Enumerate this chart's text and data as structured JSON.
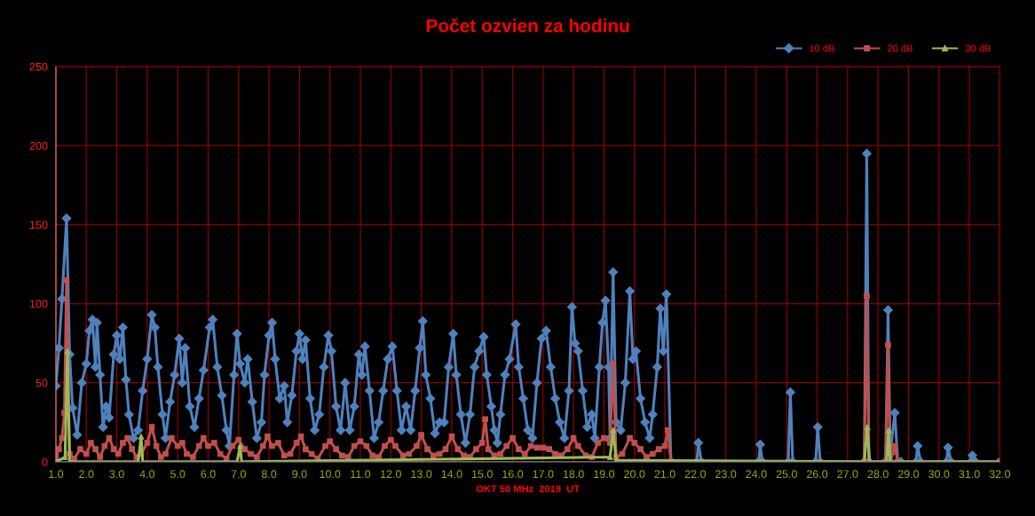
{
  "chart_data": {
    "type": "line",
    "title": "Počet ozvien za hodinu",
    "xlabel": "OKT 50 MHz  2019  UT",
    "xlim": [
      1,
      32
    ],
    "xticks": [
      {
        "value": 1,
        "label": "1.0"
      },
      {
        "value": 2,
        "label": "2.0"
      },
      {
        "value": 3,
        "label": "3.0"
      },
      {
        "value": 4,
        "label": "4.0"
      },
      {
        "value": 5,
        "label": "5.0"
      },
      {
        "value": 6,
        "label": "6.0"
      },
      {
        "value": 7,
        "label": "7.0"
      },
      {
        "value": 8,
        "label": "8.0"
      },
      {
        "value": 9,
        "label": "9.0"
      },
      {
        "value": 10,
        "label": "10.0"
      },
      {
        "value": 11,
        "label": "11.0"
      },
      {
        "value": 12,
        "label": "12.0"
      },
      {
        "value": 13,
        "label": "13.0"
      },
      {
        "value": 14,
        "label": "14.0"
      },
      {
        "value": 15,
        "label": "15.0"
      },
      {
        "value": 16,
        "label": "16.0"
      },
      {
        "value": 17,
        "label": "17.0"
      },
      {
        "value": 18,
        "label": "18.0"
      },
      {
        "value": 19,
        "label": "19.0"
      },
      {
        "value": 20,
        "label": "20.0"
      },
      {
        "value": 21,
        "label": "21.0"
      },
      {
        "value": 22,
        "label": "22.0"
      },
      {
        "value": 23,
        "label": "23.0"
      },
      {
        "value": 24,
        "label": "24.0"
      },
      {
        "value": 25,
        "label": "25.0"
      },
      {
        "value": 26,
        "label": "26.0"
      },
      {
        "value": 27,
        "label": "27.0"
      },
      {
        "value": 28,
        "label": "28.0"
      },
      {
        "value": 29,
        "label": "29.0"
      },
      {
        "value": 30,
        "label": "30.0"
      },
      {
        "value": 31,
        "label": "31.0"
      },
      {
        "value": 32,
        "label": "32.0"
      }
    ],
    "ylim": [
      0,
      250
    ],
    "yticks": [
      0,
      50,
      100,
      150,
      200,
      250
    ],
    "grid": true,
    "legend": "top right",
    "series": [
      {
        "name": "10 dB",
        "color": "#4f81bd",
        "marker": "diamond",
        "x": [
          1.0,
          1.1,
          1.2,
          1.35,
          1.45,
          1.55,
          1.7,
          1.85,
          2.0,
          2.1,
          2.2,
          2.3,
          2.35,
          2.45,
          2.55,
          2.65,
          2.75,
          2.9,
          3.0,
          3.1,
          3.2,
          3.3,
          3.4,
          3.55,
          3.7,
          3.85,
          4.0,
          4.15,
          4.25,
          4.35,
          4.5,
          4.6,
          4.75,
          4.9,
          5.05,
          5.15,
          5.25,
          5.4,
          5.55,
          5.7,
          5.85,
          6.05,
          6.15,
          6.3,
          6.45,
          6.6,
          6.7,
          6.85,
          6.95,
          7.05,
          7.2,
          7.3,
          7.45,
          7.6,
          7.75,
          7.85,
          8.0,
          8.1,
          8.2,
          8.35,
          8.5,
          8.6,
          8.75,
          8.9,
          9.0,
          9.1,
          9.2,
          9.35,
          9.5,
          9.65,
          9.8,
          9.95,
          10.05,
          10.2,
          10.35,
          10.5,
          10.65,
          10.8,
          10.95,
          11.05,
          11.15,
          11.3,
          11.45,
          11.6,
          11.75,
          11.9,
          12.05,
          12.2,
          12.35,
          12.5,
          12.65,
          12.8,
          12.95,
          13.05,
          13.15,
          13.3,
          13.45,
          13.6,
          13.75,
          13.9,
          14.05,
          14.15,
          14.3,
          14.45,
          14.6,
          14.75,
          14.9,
          15.05,
          15.15,
          15.3,
          15.4,
          15.5,
          15.6,
          15.75,
          15.9,
          16.1,
          16.2,
          16.35,
          16.5,
          16.65,
          16.8,
          16.95,
          17.1,
          17.25,
          17.4,
          17.55,
          17.7,
          17.85,
          17.95,
          18.05,
          18.15,
          18.3,
          18.45,
          18.6,
          18.7,
          18.85,
          18.95,
          19.05,
          19.15,
          19.2,
          19.3,
          19.4,
          19.55,
          19.7,
          19.85,
          19.95,
          20.05,
          20.2,
          20.35,
          20.5,
          20.6,
          20.75,
          20.85,
          20.95,
          21.05,
          21.2,
          22.05,
          22.1,
          22.2,
          24.08,
          24.13,
          24.2,
          25.05,
          25.12,
          25.2,
          25.95,
          26.02,
          26.1,
          27.55,
          27.63,
          27.7,
          28.25,
          28.33,
          28.4,
          28.55,
          28.65,
          28.75,
          29.25,
          29.3,
          29.4,
          30.25,
          30.3,
          30.4,
          31.05,
          31.1,
          31.2,
          32.0
        ],
        "values": [
          48,
          72,
          103,
          154,
          68,
          34,
          17,
          50,
          62,
          83,
          90,
          60,
          88,
          55,
          22,
          35,
          28,
          68,
          80,
          65,
          85,
          52,
          30,
          15,
          20,
          45,
          65,
          93,
          85,
          60,
          30,
          15,
          38,
          55,
          78,
          50,
          72,
          35,
          22,
          40,
          58,
          85,
          90,
          60,
          42,
          20,
          10,
          55,
          81,
          62,
          50,
          65,
          38,
          15,
          25,
          55,
          80,
          88,
          65,
          40,
          48,
          25,
          42,
          70,
          81,
          65,
          77,
          40,
          20,
          30,
          60,
          80,
          70,
          35,
          20,
          50,
          20,
          35,
          68,
          55,
          73,
          45,
          15,
          25,
          45,
          65,
          73,
          45,
          20,
          35,
          20,
          45,
          72,
          89,
          55,
          40,
          18,
          25,
          25,
          60,
          81,
          55,
          30,
          12,
          30,
          60,
          70,
          79,
          55,
          35,
          20,
          12,
          30,
          55,
          65,
          87,
          60,
          40,
          20,
          15,
          50,
          78,
          83,
          60,
          40,
          25,
          15,
          45,
          98,
          75,
          70,
          45,
          22,
          30,
          15,
          60,
          88,
          102,
          60,
          15,
          120,
          25,
          20,
          50,
          108,
          65,
          70,
          40,
          25,
          15,
          30,
          60,
          97,
          70,
          106,
          0,
          0,
          12,
          0,
          0,
          11,
          0,
          0,
          44,
          0,
          0,
          22,
          0,
          0,
          195,
          0,
          0,
          96,
          5,
          31,
          0,
          0,
          0,
          10,
          0,
          0,
          9,
          0,
          0,
          4,
          0,
          0
        ]
      },
      {
        "name": "20 dB",
        "color": "#c0504d",
        "marker": "square",
        "x": [
          1.0,
          1.1,
          1.2,
          1.28,
          1.35,
          1.45,
          1.6,
          1.8,
          2.0,
          2.15,
          2.3,
          2.45,
          2.6,
          2.75,
          2.9,
          3.05,
          3.2,
          3.35,
          3.5,
          3.65,
          3.8,
          4.0,
          4.15,
          4.3,
          4.45,
          4.6,
          4.8,
          5.0,
          5.15,
          5.3,
          5.5,
          5.7,
          5.85,
          6.0,
          6.2,
          6.4,
          6.6,
          6.8,
          7.0,
          7.2,
          7.4,
          7.6,
          7.8,
          7.95,
          8.1,
          8.3,
          8.5,
          8.7,
          8.9,
          9.05,
          9.2,
          9.4,
          9.6,
          9.85,
          10.0,
          10.2,
          10.4,
          10.6,
          10.8,
          11.0,
          11.2,
          11.4,
          11.6,
          11.8,
          12.0,
          12.15,
          12.4,
          12.6,
          12.85,
          13.0,
          13.2,
          13.4,
          13.6,
          13.8,
          14.0,
          14.2,
          14.4,
          14.6,
          14.8,
          15.0,
          15.1,
          15.2,
          15.4,
          15.6,
          15.8,
          16.0,
          16.2,
          16.4,
          16.6,
          16.8,
          17.0,
          17.2,
          17.4,
          17.6,
          17.8,
          18.0,
          18.15,
          18.4,
          18.6,
          18.8,
          19.0,
          19.2,
          19.3,
          19.4,
          19.6,
          19.85,
          20.0,
          20.2,
          20.4,
          20.6,
          20.8,
          21.0,
          21.1,
          21.2,
          27.55,
          27.63,
          27.7,
          28.25,
          28.33,
          28.4,
          28.55,
          28.65,
          32.0
        ],
        "values": [
          3,
          8,
          15,
          31,
          115,
          5,
          2,
          8,
          5,
          12,
          8,
          3,
          10,
          15,
          8,
          5,
          12,
          15,
          8,
          3,
          5,
          12,
          22,
          10,
          3,
          5,
          15,
          10,
          12,
          5,
          3,
          10,
          15,
          10,
          12,
          5,
          2,
          10,
          14,
          8,
          5,
          3,
          10,
          16,
          10,
          12,
          4,
          5,
          12,
          16,
          8,
          5,
          2,
          10,
          13,
          8,
          4,
          3,
          10,
          13,
          10,
          4,
          3,
          10,
          14,
          10,
          4,
          5,
          10,
          17,
          8,
          4,
          5,
          8,
          16,
          8,
          4,
          3,
          8,
          12,
          27,
          8,
          4,
          5,
          10,
          15,
          8,
          5,
          10,
          9,
          9,
          8,
          5,
          4,
          8,
          15,
          10,
          4,
          3,
          12,
          15,
          12,
          62,
          3,
          5,
          15,
          12,
          8,
          3,
          5,
          8,
          10,
          20,
          0,
          0,
          105,
          0,
          0,
          74,
          0,
          10,
          0,
          0
        ]
      },
      {
        "name": "30 dB",
        "color": "#9bbb59",
        "marker": "triangle",
        "x": [
          1.0,
          1.3,
          1.38,
          1.45,
          3.7,
          3.8,
          3.85,
          6.95,
          7.05,
          7.1,
          19.2,
          19.3,
          19.4,
          27.55,
          27.65,
          27.72,
          28.28,
          28.35,
          28.4,
          32.0
        ],
        "values": [
          0,
          3,
          70,
          0,
          0,
          16,
          0,
          0,
          10,
          0,
          3,
          20,
          1,
          0,
          22,
          0,
          0,
          20,
          0,
          0
        ]
      }
    ]
  }
}
